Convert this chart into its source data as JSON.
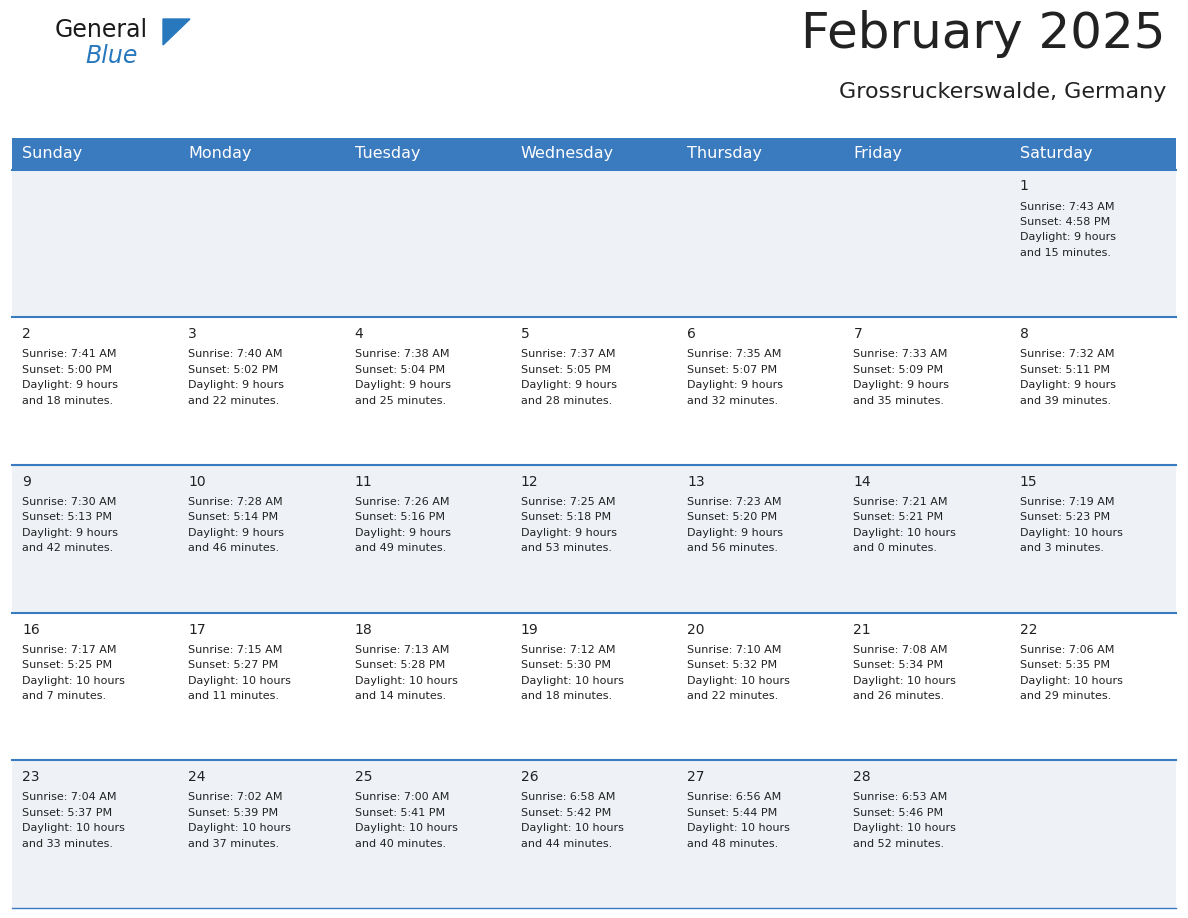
{
  "title": "February 2025",
  "subtitle": "Grossruckerswalde, Germany",
  "header_color": "#3a7abf",
  "header_text_color": "#ffffff",
  "cell_bg_even": "#eef2f7",
  "cell_bg_odd": "#ffffff",
  "text_color": "#222222",
  "day_headers": [
    "Sunday",
    "Monday",
    "Tuesday",
    "Wednesday",
    "Thursday",
    "Friday",
    "Saturday"
  ],
  "days": [
    {
      "day": 1,
      "col": 6,
      "row": 0,
      "sunrise": "7:43 AM",
      "sunset": "4:58 PM",
      "daylight": "9 hours and 15 minutes."
    },
    {
      "day": 2,
      "col": 0,
      "row": 1,
      "sunrise": "7:41 AM",
      "sunset": "5:00 PM",
      "daylight": "9 hours and 18 minutes."
    },
    {
      "day": 3,
      "col": 1,
      "row": 1,
      "sunrise": "7:40 AM",
      "sunset": "5:02 PM",
      "daylight": "9 hours and 22 minutes."
    },
    {
      "day": 4,
      "col": 2,
      "row": 1,
      "sunrise": "7:38 AM",
      "sunset": "5:04 PM",
      "daylight": "9 hours and 25 minutes."
    },
    {
      "day": 5,
      "col": 3,
      "row": 1,
      "sunrise": "7:37 AM",
      "sunset": "5:05 PM",
      "daylight": "9 hours and 28 minutes."
    },
    {
      "day": 6,
      "col": 4,
      "row": 1,
      "sunrise": "7:35 AM",
      "sunset": "5:07 PM",
      "daylight": "9 hours and 32 minutes."
    },
    {
      "day": 7,
      "col": 5,
      "row": 1,
      "sunrise": "7:33 AM",
      "sunset": "5:09 PM",
      "daylight": "9 hours and 35 minutes."
    },
    {
      "day": 8,
      "col": 6,
      "row": 1,
      "sunrise": "7:32 AM",
      "sunset": "5:11 PM",
      "daylight": "9 hours and 39 minutes."
    },
    {
      "day": 9,
      "col": 0,
      "row": 2,
      "sunrise": "7:30 AM",
      "sunset": "5:13 PM",
      "daylight": "9 hours and 42 minutes."
    },
    {
      "day": 10,
      "col": 1,
      "row": 2,
      "sunrise": "7:28 AM",
      "sunset": "5:14 PM",
      "daylight": "9 hours and 46 minutes."
    },
    {
      "day": 11,
      "col": 2,
      "row": 2,
      "sunrise": "7:26 AM",
      "sunset": "5:16 PM",
      "daylight": "9 hours and 49 minutes."
    },
    {
      "day": 12,
      "col": 3,
      "row": 2,
      "sunrise": "7:25 AM",
      "sunset": "5:18 PM",
      "daylight": "9 hours and 53 minutes."
    },
    {
      "day": 13,
      "col": 4,
      "row": 2,
      "sunrise": "7:23 AM",
      "sunset": "5:20 PM",
      "daylight": "9 hours and 56 minutes."
    },
    {
      "day": 14,
      "col": 5,
      "row": 2,
      "sunrise": "7:21 AM",
      "sunset": "5:21 PM",
      "daylight": "10 hours and 0 minutes."
    },
    {
      "day": 15,
      "col": 6,
      "row": 2,
      "sunrise": "7:19 AM",
      "sunset": "5:23 PM",
      "daylight": "10 hours and 3 minutes."
    },
    {
      "day": 16,
      "col": 0,
      "row": 3,
      "sunrise": "7:17 AM",
      "sunset": "5:25 PM",
      "daylight": "10 hours and 7 minutes."
    },
    {
      "day": 17,
      "col": 1,
      "row": 3,
      "sunrise": "7:15 AM",
      "sunset": "5:27 PM",
      "daylight": "10 hours and 11 minutes."
    },
    {
      "day": 18,
      "col": 2,
      "row": 3,
      "sunrise": "7:13 AM",
      "sunset": "5:28 PM",
      "daylight": "10 hours and 14 minutes."
    },
    {
      "day": 19,
      "col": 3,
      "row": 3,
      "sunrise": "7:12 AM",
      "sunset": "5:30 PM",
      "daylight": "10 hours and 18 minutes."
    },
    {
      "day": 20,
      "col": 4,
      "row": 3,
      "sunrise": "7:10 AM",
      "sunset": "5:32 PM",
      "daylight": "10 hours and 22 minutes."
    },
    {
      "day": 21,
      "col": 5,
      "row": 3,
      "sunrise": "7:08 AM",
      "sunset": "5:34 PM",
      "daylight": "10 hours and 26 minutes."
    },
    {
      "day": 22,
      "col": 6,
      "row": 3,
      "sunrise": "7:06 AM",
      "sunset": "5:35 PM",
      "daylight": "10 hours and 29 minutes."
    },
    {
      "day": 23,
      "col": 0,
      "row": 4,
      "sunrise": "7:04 AM",
      "sunset": "5:37 PM",
      "daylight": "10 hours and 33 minutes."
    },
    {
      "day": 24,
      "col": 1,
      "row": 4,
      "sunrise": "7:02 AM",
      "sunset": "5:39 PM",
      "daylight": "10 hours and 37 minutes."
    },
    {
      "day": 25,
      "col": 2,
      "row": 4,
      "sunrise": "7:00 AM",
      "sunset": "5:41 PM",
      "daylight": "10 hours and 40 minutes."
    },
    {
      "day": 26,
      "col": 3,
      "row": 4,
      "sunrise": "6:58 AM",
      "sunset": "5:42 PM",
      "daylight": "10 hours and 44 minutes."
    },
    {
      "day": 27,
      "col": 4,
      "row": 4,
      "sunrise": "6:56 AM",
      "sunset": "5:44 PM",
      "daylight": "10 hours and 48 minutes."
    },
    {
      "day": 28,
      "col": 5,
      "row": 4,
      "sunrise": "6:53 AM",
      "sunset": "5:46 PM",
      "daylight": "10 hours and 52 minutes."
    }
  ],
  "num_rows": 5,
  "num_cols": 7,
  "logo_color_general": "#1a1a1a",
  "logo_color_blue": "#2878be",
  "logo_triangle_color": "#2878be",
  "divider_color": "#3a7abf",
  "cell_font_size": 8.0,
  "day_num_font_size": 10,
  "header_font_size": 11.5,
  "title_font_size": 36,
  "subtitle_font_size": 16
}
